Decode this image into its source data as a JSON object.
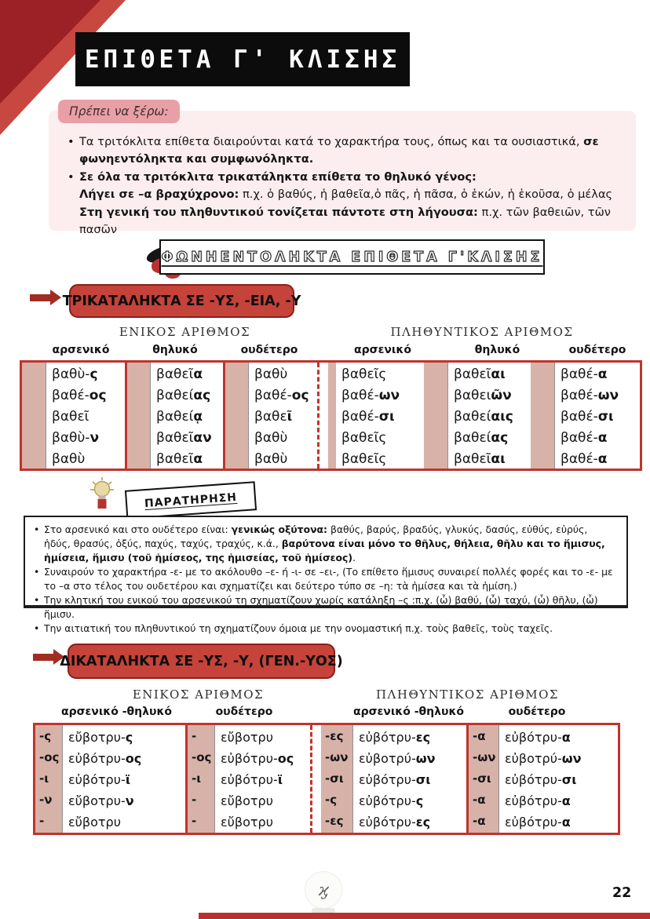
{
  "page": {
    "title": "ΕΠΙΘΕΤΑ Γ' ΚΛΙΣΗΣ"
  },
  "colors": {
    "accent_red": "#c0342c",
    "dark_red": "#9c2127",
    "banner_red": "#c5433a",
    "tan_stripe": "#d7b2a8",
    "pink_panel": "#fceeef",
    "pink_badge": "#e8a0a6"
  },
  "know": {
    "badge": "Πρέπει να ξέρω:",
    "bullets": [
      {
        "bullet": true,
        "segs": [
          {
            "t": "Τα τριτόκλιτα επίθετα διαιρούνται κατά το χαρακτήρα τους, όπως και τα ουσιαστικά, ",
            "b": false
          },
          {
            "t": "σε φωνηεντόληκτα και συμφωνόληκτα.",
            "b": true
          }
        ]
      },
      {
        "bullet": true,
        "segs": [
          {
            "t": "Σε όλα τα τριτόκλιτα τρικατάληκτα επίθετα το θηλυκό γένος:",
            "b": true
          }
        ]
      },
      {
        "bullet": false,
        "segs": [
          {
            "t": "Λήγει σε –α βραχύχρονο:",
            "b": true
          },
          {
            "t": " π.χ. ὁ βαθύς, ἡ βαθεῖα,ὁ πᾶς, ἡ πᾶσα, ὁ ἑκών, ἡ ἑκοῦσα, ὁ μέλας",
            "b": false
          }
        ]
      },
      {
        "bullet": false,
        "segs": [
          {
            "t": "Στη γενική του πληθυντικού τονίζεται πάντοτε στη λήγουσα:",
            "b": true
          },
          {
            "t": " π.χ. τῶν βαθειῶν, τῶν πασῶν",
            "b": false
          }
        ]
      }
    ]
  },
  "section_header": {
    "label": "ΦΩΝΗΕΝΤΟΛΗΚΤΑ ΕΠΙΘΕΤΑ Γ'ΚΛΙΣΗΣ"
  },
  "banner1": {
    "label": "ΤΡΙΚΑΤΑΛΗΚΤΑ ΣΕ -ΥΣ, -ΕΙΑ, -Υ"
  },
  "banner2": {
    "label": "ΔΙΚΑΤΑΛΗΚΤΑ ΣΕ -ΥΣ, -Υ, (ΓΕΝ.-ΥΟΣ)"
  },
  "table1": {
    "singular_title": "ΕΝΙΚΟΣ ΑΡΙΘΜΟΣ",
    "plural_title": "ΠΛΗΘΥΝΤΙΚΟΣ ΑΡΙΘΜΟΣ",
    "col_headers": [
      "αρσενικό",
      "θηλυκό",
      "ουδέτερο",
      "αρσενικό",
      "θηλυκό",
      "ουδέτερο"
    ],
    "sg_masc": [
      [
        "βαθὺ-",
        "ς"
      ],
      [
        "βαθέ-",
        "ος"
      ],
      [
        "βαθεῖ",
        ""
      ],
      [
        "βαθὺ-",
        "ν"
      ],
      [
        "βαθὺ",
        ""
      ]
    ],
    "sg_fem": [
      [
        "βαθεῖ",
        "α"
      ],
      [
        "βαθεί",
        "ας"
      ],
      [
        "βαθεί",
        "ᾳ"
      ],
      [
        "βαθεῖ",
        "αν"
      ],
      [
        "βαθεῖ",
        "α"
      ]
    ],
    "sg_neut": [
      [
        "βαθὺ",
        ""
      ],
      [
        "βαθέ-",
        "ος"
      ],
      [
        "βαθε",
        "ῖ"
      ],
      [
        "βαθὺ",
        ""
      ],
      [
        "βαθὺ",
        ""
      ]
    ],
    "pl_masc": [
      [
        "βαθεῖς",
        ""
      ],
      [
        "βαθέ-",
        "ων"
      ],
      [
        "βαθέ-",
        "σι"
      ],
      [
        "βαθεῖς",
        ""
      ],
      [
        "βαθεῖς",
        ""
      ]
    ],
    "pl_fem": [
      [
        "βαθεῖ",
        "αι"
      ],
      [
        "βαθει",
        "ῶν"
      ],
      [
        "βαθεί",
        "αις"
      ],
      [
        "βαθεί",
        "ας"
      ],
      [
        "βαθεῖ",
        "αι"
      ]
    ],
    "pl_neut": [
      [
        "βαθέ-",
        "α"
      ],
      [
        "βαθέ-",
        "ων"
      ],
      [
        "βαθέ-",
        "σι"
      ],
      [
        "βαθέ-",
        "α"
      ],
      [
        "βαθέ-",
        "α"
      ]
    ]
  },
  "note": {
    "label": "ΠΑΡΑΤΗΡΗΣΗ",
    "bullets": [
      {
        "bullet": true,
        "segs": [
          {
            "t": "Στο αρσενικό και στο ουδέτερο είναι: ",
            "b": false
          },
          {
            "t": "γενικώς οξύτονα:",
            "b": true
          },
          {
            "t": " βαθύς, βαρύς, βραδύς, γλυκύς, δασύς, εὐθύς, εὐρύς, ἡδύς, θρασύς, ὀξύς, παχύς, ταχύς, τραχύς, κ.ά., ",
            "b": false
          },
          {
            "t": "βαρύτονα είναι μόνο το θῆλυς, θήλεια, θῆλυ και το ἥμισυς, ἡμίσεια, ἥμισυ (τοῦ ἡμίσεος, της ἡμισείας, τοῦ ἡμίσεος)",
            "b": true
          },
          {
            "t": ".",
            "b": false
          }
        ]
      },
      {
        "bullet": true,
        "segs": [
          {
            "t": "Συναιρούν το χαρακτήρα -ε- με το ακόλουθο –ε- ή -ι- σε –ει-, (Το επίθετο ἥμισυς συναιρεί πολλές φορές και το -ε- με το –α στο τέλος του ουδετέρου και σχηματίζει και δεύτερο τύπο σε –η: τὰ ἡμίσεα και τὰ ἡμίση.)",
            "b": false
          }
        ]
      },
      {
        "bullet": true,
        "segs": [
          {
            "t": "Την κλητική του ενικού του αρσενικού τη σχηματίζουν χωρίς κατάληξη –ς :π.χ. (ὦ) βαθύ, (ὦ) ταχύ, (ὦ) θῆλυ, (ὦ) ἥμισυ.",
            "b": false
          }
        ]
      },
      {
        "bullet": true,
        "segs": [
          {
            "t": "Την αιτιατική του πληθυντικού τη σχηματίζουν όμοια με την ονομαστική π.χ. τοὺς βαθεῖς, τοὺς ταχεῖς.",
            "b": false
          }
        ]
      }
    ]
  },
  "table2": {
    "singular_title": "ΕΝΙΚΟΣ ΑΡΙΘΜΟΣ",
    "plural_title": "ΠΛΗΘΥΝΤΙΚΟΣ ΑΡΙΘΜΟΣ",
    "col_headers": [
      "αρσενικό -θηλυκό",
      "ουδέτερο",
      "αρσενικό -θηλυκό",
      "ουδέτερο"
    ],
    "groups": {
      "g1": {
        "endings": [
          "-ς",
          "-ος",
          "-ι",
          "-ν",
          "-"
        ],
        "words": [
          [
            "εὔβοτρυ-",
            "ς"
          ],
          [
            "εὐβότρυ-",
            "ος"
          ],
          [
            "εὐβότρυ-",
            "ϊ"
          ],
          [
            "εὔβοτρυ-",
            "ν"
          ],
          [
            "εὔβοτρυ",
            ""
          ]
        ]
      },
      "g2": {
        "endings": [
          "-",
          "-ος",
          "-ι",
          "-",
          "-"
        ],
        "words": [
          [
            "εὔβοτρυ",
            ""
          ],
          [
            "εὐβότρυ-",
            "ος"
          ],
          [
            "εὐβότρυ-",
            "ϊ"
          ],
          [
            "εὔβοτρυ",
            ""
          ],
          [
            "εὔβοτρυ",
            ""
          ]
        ]
      },
      "g3": {
        "endings": [
          "-ες",
          "-ων",
          "-σι",
          "-ς",
          "-ες"
        ],
        "words": [
          [
            "εὐβότρυ-",
            "ες"
          ],
          [
            "εὐβοτρύ-",
            "ων"
          ],
          [
            "εὐβότρυ-",
            "σι"
          ],
          [
            "εὐβότρυ-",
            "ς"
          ],
          [
            "εὐβότρυ-",
            "ες"
          ]
        ]
      },
      "g4": {
        "endings": [
          "-α",
          "-ων",
          "-σι",
          "-α",
          "-α"
        ],
        "words": [
          [
            "εὐβότρυ-",
            "α"
          ],
          [
            "εὐβοτρύ-",
            "ων"
          ],
          [
            "εὐβότρυ-",
            "σι"
          ],
          [
            "εὐβότρυ-",
            "α"
          ],
          [
            "εὐβότρυ-",
            "α"
          ]
        ]
      }
    }
  },
  "footer": {
    "page_number": "22",
    "logo_monogram": "ϗ"
  }
}
